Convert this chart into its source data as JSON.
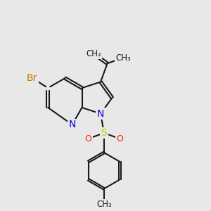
{
  "background_color": "#e8e8e8",
  "bond_color": "#1a1a1a",
  "N_color": "#0000dd",
  "Br_color": "#cc7700",
  "S_color": "#cccc00",
  "O_color": "#ff2200",
  "lw": 1.5,
  "BL": 1.0,
  "xlim": [
    0,
    10
  ],
  "ylim": [
    0,
    10
  ]
}
